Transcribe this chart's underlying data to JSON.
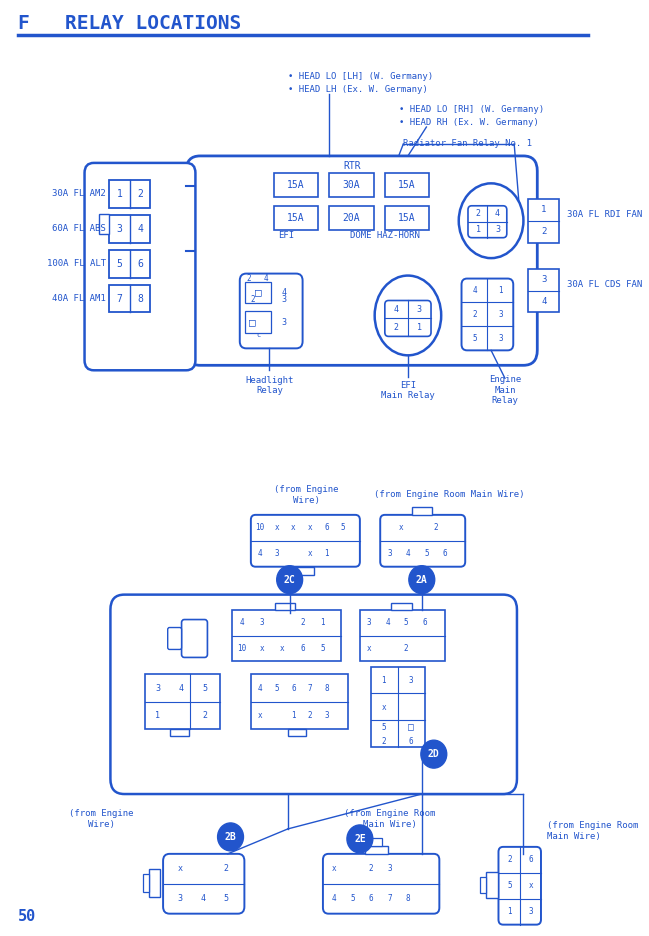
{
  "title": "F   RELAY LOCATIONS",
  "bg_color": "#ffffff",
  "diagram_color": "#2255cc",
  "page_number": "50",
  "fuse_left_labels": [
    "30A FL AM2",
    "60A FL ABS",
    "100A FL ALT",
    "40A FL AM1"
  ],
  "fuse_left_nums": [
    [
      "1",
      "2"
    ],
    [
      "3",
      "4"
    ],
    [
      "5",
      "6"
    ],
    [
      "7",
      "8"
    ]
  ],
  "rtr": "RTR",
  "top_fuses": [
    "15A",
    "30A",
    "15A"
  ],
  "bot_fuses": [
    "15A",
    "20A",
    "15A"
  ],
  "bot_labels": [
    "EFI",
    "DOME HAZ-HORN"
  ],
  "rdi_label": "30A FL RDI FAN",
  "cds_label": "30A FL CDS FAN",
  "head_lh_lines": [
    "• HEAD LO [LH] (W. Germany)",
    "• HEAD LH (Ex. W. Germany)"
  ],
  "head_rh_lines": [
    "• HEAD LO [RH] (W. Germany)",
    "• HEAD RH (Ex. W. Germany)"
  ],
  "radiator_label": "Radiator Fan Relay No. 1",
  "bottom_relay_labels": [
    "Headlight\nRelay",
    "EFI\nMain Relay",
    "Engine\nMain\nRelay"
  ]
}
